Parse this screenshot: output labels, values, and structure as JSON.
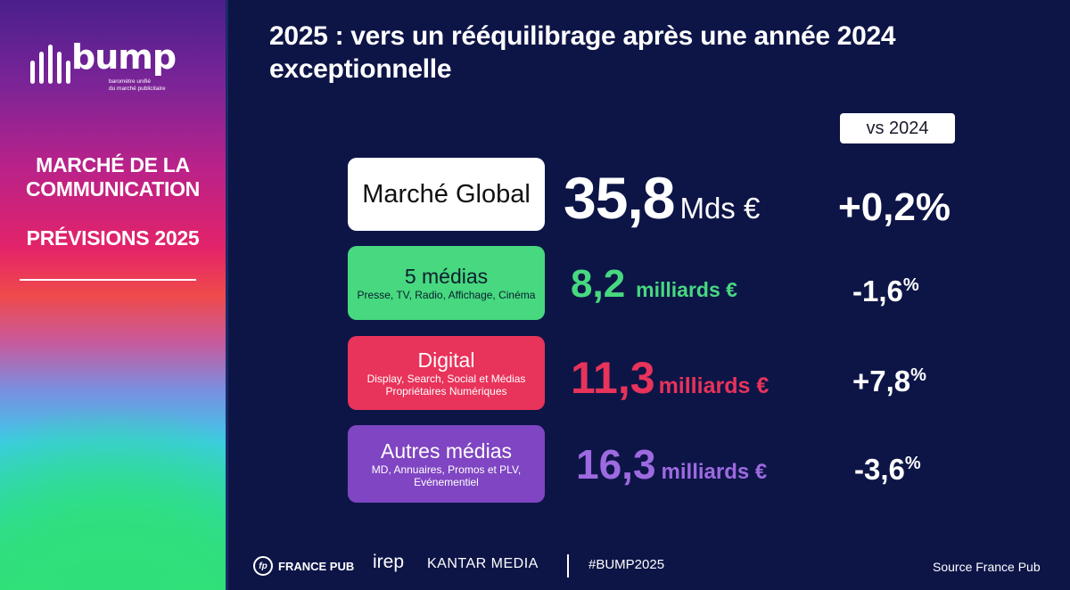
{
  "sidebar": {
    "logo_word": "bump",
    "logo_sub_1": "baromètre unifié",
    "logo_sub_2": "du marché publicitaire",
    "title_line1": "MARCHÉ DE LA",
    "title_line2": "COMMUNICATION",
    "subtitle": "PRÉVISIONS 2025"
  },
  "header": {
    "title_line1": "2025 : vers un rééquilibrage après une année 2024",
    "title_line2": "exceptionnelle",
    "vs_label": "vs 2024"
  },
  "rows": {
    "global": {
      "label": "Marché Global",
      "value": "35,8",
      "unit": "Mds €",
      "change": "+0,2%"
    },
    "media": {
      "label": "5 médias",
      "sublabel": "Presse, TV, Radio, Affichage, Cinéma",
      "value": "8,2",
      "unit": "milliards €",
      "change": "-1,6",
      "change_pct": "%"
    },
    "digital": {
      "label": "Digital",
      "sublabel_1": "Display, Search, Social et Médias",
      "sublabel_2": "Propriétaires Numériques",
      "value": "11,3",
      "unit": "milliards €",
      "change": "+7,8",
      "change_pct": "%"
    },
    "autres": {
      "label": "Autres médias",
      "sublabel_1": "MD, Annuaires, Promos et PLV,",
      "sublabel_2": "Evénementiel",
      "value": "16,3",
      "unit": "milliards €",
      "change": "-3,6",
      "change_pct": "%"
    }
  },
  "colors": {
    "media": "#47d880",
    "digital": "#e8335a",
    "autres": "#7f45c2",
    "background": "#0d1547"
  },
  "footer": {
    "francepub": "FRANCE PUB",
    "francepub_icon": "fp",
    "irep": "irep",
    "kantar": "KANTAR MEDIA",
    "hashtag": "#BUMP2025",
    "source": "Source France Pub"
  }
}
